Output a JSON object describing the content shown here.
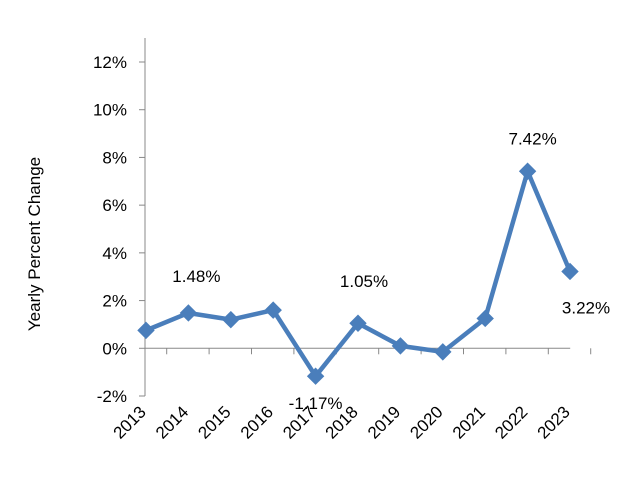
{
  "chart_data": {
    "type": "line",
    "title": "",
    "xlabel": "",
    "ylabel": "Yearly Percent Change",
    "categories": [
      "2013",
      "2014",
      "2015",
      "2016",
      "2017",
      "2018",
      "2019",
      "2020",
      "2021",
      "2022",
      "2023"
    ],
    "series": [
      {
        "values": [
          0.75,
          1.48,
          1.2,
          1.6,
          -1.17,
          1.05,
          0.1,
          -0.15,
          1.25,
          7.42,
          3.22
        ],
        "color": "#4a7ebb",
        "marker": "diamond"
      }
    ],
    "ylim": [
      -2,
      12
    ],
    "yticks": [
      -2,
      0,
      2,
      4,
      6,
      8,
      10,
      12
    ],
    "ytick_labels": [
      "-2%",
      "0%",
      "2%",
      "4%",
      "6%",
      "8%",
      "10%",
      "12%"
    ],
    "data_labels": [
      {
        "index": 1,
        "text": "1.48%"
      },
      {
        "index": 4,
        "text": "-1.17%"
      },
      {
        "index": 5,
        "text": "1.05%"
      },
      {
        "index": 9,
        "text": "7.42%"
      },
      {
        "index": 10,
        "text": "3.22%"
      }
    ],
    "grid": false,
    "legend": "none"
  }
}
